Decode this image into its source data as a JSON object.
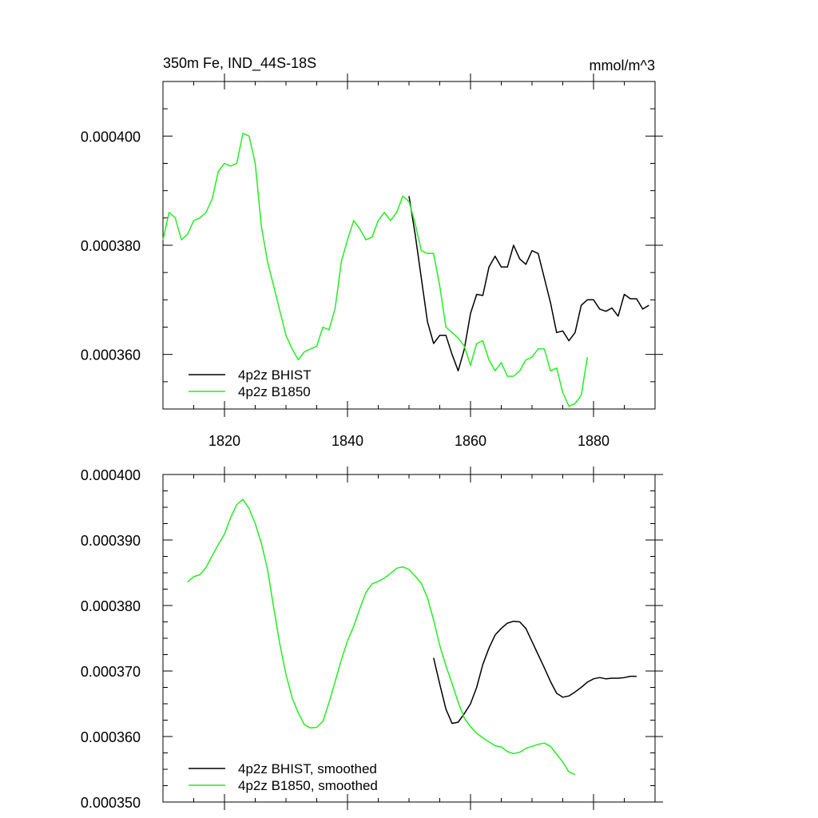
{
  "figure": {
    "title_left": "350m Fe, IND_44S-18S",
    "title_right": "mmol/m^3"
  },
  "colors": {
    "bhist": "#000000",
    "b1850": "#22ee22"
  },
  "chart_data": [
    {
      "type": "line",
      "xlim": [
        1810,
        1890
      ],
      "ylim": [
        0.00035,
        0.00041
      ],
      "x_ticks": [
        1820,
        1840,
        1860,
        1880
      ],
      "x_tick_labels": [
        "1820",
        "1840",
        "1860",
        "1880"
      ],
      "y_ticks": [
        0.00036,
        0.00038,
        0.0004
      ],
      "y_tick_labels": [
        "0.000360",
        "0.000380",
        "0.000400"
      ],
      "grid": false,
      "legend": "bottom-left",
      "series": [
        {
          "name": "4p2z BHIST",
          "color": "#000000",
          "x": [
            1850,
            1851,
            1852,
            1853,
            1854,
            1855,
            1856,
            1857,
            1858,
            1859,
            1860,
            1861,
            1862,
            1863,
            1864,
            1865,
            1866,
            1867,
            1868,
            1869,
            1870,
            1871,
            1872,
            1873,
            1874,
            1875,
            1876,
            1877,
            1878,
            1879,
            1880,
            1881,
            1882,
            1883,
            1884,
            1885,
            1886,
            1887,
            1888,
            1889
          ],
          "y": [
            0.000389,
            0.000382,
            0.000374,
            0.000366,
            0.000362,
            0.0003635,
            0.0003635,
            0.00036,
            0.000357,
            0.000361,
            0.0003675,
            0.000371,
            0.0003708,
            0.000376,
            0.000378,
            0.000376,
            0.000376,
            0.00038,
            0.0003775,
            0.0003765,
            0.000379,
            0.0003785,
            0.000374,
            0.0003695,
            0.000364,
            0.0003643,
            0.0003625,
            0.000364,
            0.000369,
            0.00037,
            0.00037,
            0.0003683,
            0.0003679,
            0.0003685,
            0.000367,
            0.000371,
            0.0003702,
            0.0003702,
            0.0003683,
            0.000369
          ]
        },
        {
          "name": "4p2z B1850",
          "color": "#22ee22",
          "x": [
            1810,
            1811,
            1812,
            1813,
            1814,
            1815,
            1816,
            1817,
            1818,
            1819,
            1820,
            1821,
            1822,
            1823,
            1824,
            1825,
            1826,
            1827,
            1828,
            1829,
            1830,
            1831,
            1832,
            1833,
            1834,
            1835,
            1836,
            1837,
            1838,
            1839,
            1840,
            1841,
            1842,
            1843,
            1844,
            1845,
            1846,
            1847,
            1848,
            1849,
            1850,
            1851,
            1852,
            1853,
            1854,
            1855,
            1856,
            1857,
            1858,
            1859,
            1860,
            1861,
            1862,
            1863,
            1864,
            1865,
            1866,
            1867,
            1868,
            1869,
            1870,
            1871,
            1872,
            1873,
            1874,
            1875,
            1876,
            1877,
            1878,
            1879
          ],
          "y": [
            0.000381,
            0.000386,
            0.000385,
            0.000381,
            0.000382,
            0.0003845,
            0.000385,
            0.000386,
            0.0003885,
            0.0003935,
            0.000395,
            0.0003945,
            0.000395,
            0.0004005,
            0.0004,
            0.000395,
            0.0003835,
            0.000377,
            0.0003725,
            0.000368,
            0.0003635,
            0.000361,
            0.000359,
            0.0003605,
            0.000361,
            0.0003615,
            0.000365,
            0.0003645,
            0.0003685,
            0.000377,
            0.000381,
            0.0003845,
            0.000383,
            0.000381,
            0.0003815,
            0.0003845,
            0.000386,
            0.0003845,
            0.000386,
            0.000389,
            0.000388,
            0.000384,
            0.000379,
            0.0003785,
            0.0003785,
            0.0003725,
            0.000365,
            0.000364,
            0.000363,
            0.0003615,
            0.000358,
            0.000362,
            0.0003625,
            0.000359,
            0.000357,
            0.0003585,
            0.000356,
            0.000356,
            0.000357,
            0.000359,
            0.0003595,
            0.000361,
            0.000361,
            0.000357,
            0.0003575,
            0.000353,
            0.0003505,
            0.000351,
            0.0003525,
            0.0003595
          ]
        }
      ]
    },
    {
      "type": "line",
      "xlim": [
        1810,
        1890
      ],
      "ylim": [
        0.00035,
        0.0004
      ],
      "x_ticks": [
        1820,
        1840,
        1860,
        1880
      ],
      "y_ticks": [
        0.00035,
        0.00036,
        0.00037,
        0.00038,
        0.00039,
        0.0004
      ],
      "y_tick_labels": [
        "0.000350",
        "0.000360",
        "0.000370",
        "0.000380",
        "0.000390",
        "0.000400"
      ],
      "grid": false,
      "legend": "bottom-left",
      "series": [
        {
          "name": "4p2z BHIST, smoothed",
          "color": "#000000",
          "x": [
            1854,
            1855,
            1856,
            1857,
            1858,
            1859,
            1860,
            1861,
            1862,
            1863,
            1864,
            1865,
            1866,
            1867,
            1868,
            1869,
            1870,
            1871,
            1872,
            1873,
            1874,
            1875,
            1876,
            1877,
            1878,
            1879,
            1880,
            1881,
            1882,
            1883,
            1884,
            1885,
            1886,
            1887
          ],
          "y": [
            0.000372,
            0.000368,
            0.0003642,
            0.000362,
            0.0003622,
            0.0003635,
            0.000365,
            0.0003675,
            0.000371,
            0.0003735,
            0.0003755,
            0.0003765,
            0.0003773,
            0.0003776,
            0.0003775,
            0.0003765,
            0.0003745,
            0.0003725,
            0.0003705,
            0.0003684,
            0.0003666,
            0.000366,
            0.0003662,
            0.0003668,
            0.0003675,
            0.0003683,
            0.0003688,
            0.000369,
            0.0003688,
            0.0003689,
            0.0003689,
            0.000369,
            0.0003692,
            0.0003692
          ]
        },
        {
          "name": "4p2z B1850, smoothed",
          "color": "#22ee22",
          "x": [
            1814,
            1815,
            1816,
            1817,
            1818,
            1819,
            1820,
            1821,
            1822,
            1823,
            1824,
            1825,
            1826,
            1827,
            1828,
            1829,
            1830,
            1831,
            1832,
            1833,
            1834,
            1835,
            1836,
            1837,
            1838,
            1839,
            1840,
            1841,
            1842,
            1843,
            1844,
            1845,
            1846,
            1847,
            1848,
            1849,
            1850,
            1851,
            1852,
            1853,
            1854,
            1855,
            1856,
            1857,
            1858,
            1859,
            1860,
            1861,
            1862,
            1863,
            1864,
            1865,
            1866,
            1867,
            1868,
            1869,
            1870,
            1871,
            1872,
            1873,
            1874,
            1875,
            1876,
            1877
          ],
          "y": [
            0.0003836,
            0.0003844,
            0.0003847,
            0.0003858,
            0.0003876,
            0.0003893,
            0.0003909,
            0.0003934,
            0.0003954,
            0.0003962,
            0.0003948,
            0.0003925,
            0.0003895,
            0.0003855,
            0.0003797,
            0.0003741,
            0.0003695,
            0.0003659,
            0.0003636,
            0.0003618,
            0.0003613,
            0.0003614,
            0.0003623,
            0.0003652,
            0.0003684,
            0.0003717,
            0.0003746,
            0.0003768,
            0.0003795,
            0.000382,
            0.0003833,
            0.0003837,
            0.0003842,
            0.0003849,
            0.0003857,
            0.0003859,
            0.0003855,
            0.0003845,
            0.0003834,
            0.0003812,
            0.0003778,
            0.0003739,
            0.0003708,
            0.0003681,
            0.0003652,
            0.0003628,
            0.0003615,
            0.0003605,
            0.0003598,
            0.0003592,
            0.0003586,
            0.0003584,
            0.0003577,
            0.0003574,
            0.0003576,
            0.0003582,
            0.0003585,
            0.0003588,
            0.000359,
            0.0003585,
            0.0003573,
            0.0003561,
            0.0003546,
            0.0003542
          ]
        }
      ]
    }
  ]
}
